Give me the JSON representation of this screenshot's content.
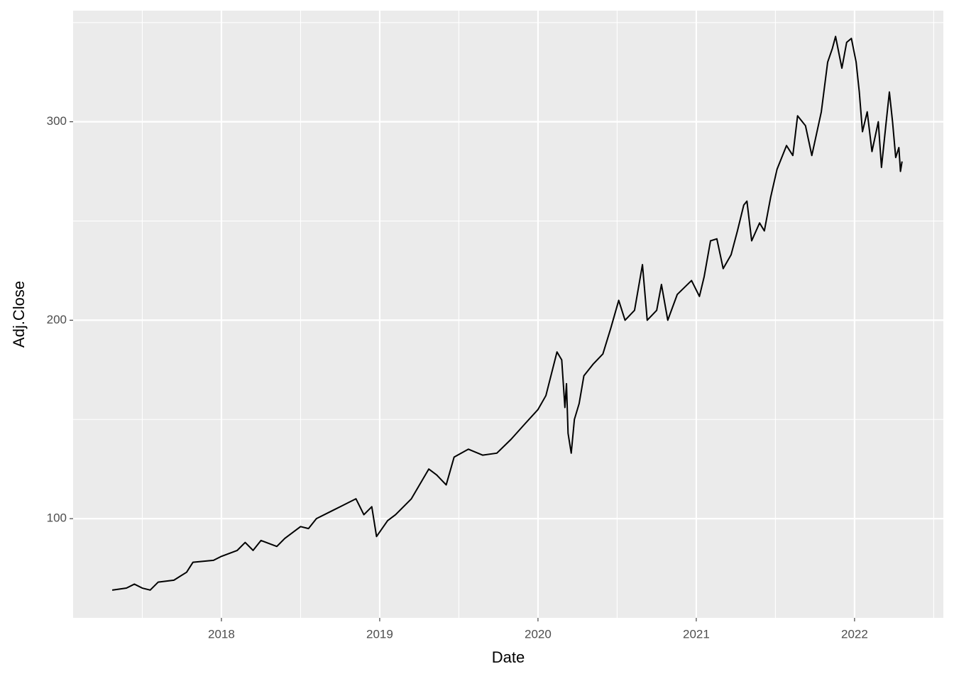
{
  "chart_data": {
    "type": "line",
    "x_label": "Date",
    "y_label": "Adj.Close",
    "xlim": [
      2017.063,
      2022.561
    ],
    "xticks": [
      2018,
      2019,
      2020,
      2021,
      2022
    ],
    "x_minor_grid": [
      2017.5,
      2018.5,
      2019.5,
      2020.5,
      2021.5,
      2022.5
    ],
    "ylim": [
      50,
      356
    ],
    "yticks": [
      100,
      200,
      300
    ],
    "y_minor_grid": [
      150,
      250,
      350
    ],
    "grid": true,
    "series": [
      {
        "color": "#000000",
        "x": [
          2017.31,
          2017.4,
          2017.45,
          2017.5,
          2017.55,
          2017.6,
          2017.7,
          2017.78,
          2017.82,
          2017.95,
          2018.0,
          2018.1,
          2018.15,
          2018.2,
          2018.25,
          2018.35,
          2018.4,
          2018.5,
          2018.55,
          2018.6,
          2018.7,
          2018.75,
          2018.8,
          2018.85,
          2018.9,
          2018.95,
          2018.98,
          2019.05,
          2019.1,
          2019.2,
          2019.31,
          2019.36,
          2019.42,
          2019.47,
          2019.56,
          2019.65,
          2019.74,
          2019.83,
          2019.92,
          2020.0,
          2020.05,
          2020.12,
          2020.15,
          2020.17,
          2020.18,
          2020.19,
          2020.21,
          2020.23,
          2020.26,
          2020.29,
          2020.35,
          2020.41,
          2020.46,
          2020.51,
          2020.55,
          2020.61,
          2020.66,
          2020.69,
          2020.75,
          2020.78,
          2020.82,
          2020.88,
          2020.97,
          2021.02,
          2021.05,
          2021.09,
          2021.13,
          2021.17,
          2021.22,
          2021.26,
          2021.3,
          2021.32,
          2021.35,
          2021.4,
          2021.43,
          2021.47,
          2021.51,
          2021.57,
          2021.61,
          2021.64,
          2021.69,
          2021.73,
          2021.79,
          2021.83,
          2021.86,
          2021.88,
          2021.92,
          2021.95,
          2021.98,
          2022.01,
          2022.03,
          2022.05,
          2022.08,
          2022.11,
          2022.15,
          2022.17,
          2022.2,
          2022.22,
          2022.24,
          2022.26,
          2022.28,
          2022.29,
          2022.3
        ],
        "values": [
          64,
          65,
          67,
          65,
          64,
          68,
          69,
          73,
          78,
          79,
          81,
          84,
          88,
          84,
          89,
          86,
          90,
          96,
          95,
          100,
          104,
          106,
          108,
          110,
          102,
          106,
          91,
          99,
          102,
          110,
          125,
          122,
          117,
          131,
          135,
          132,
          133,
          140,
          148,
          155,
          162,
          184,
          180,
          156,
          168,
          143,
          133,
          150,
          158,
          172,
          178,
          183,
          196,
          210,
          200,
          205,
          228,
          200,
          205,
          218,
          200,
          213,
          220,
          212,
          222,
          240,
          241,
          226,
          233,
          245,
          258,
          260,
          240,
          249,
          245,
          262,
          276,
          288,
          283,
          303,
          298,
          283,
          305,
          330,
          337,
          343,
          327,
          340,
          342,
          330,
          315,
          295,
          305,
          285,
          300,
          277,
          300,
          315,
          300,
          282,
          287,
          275,
          280
        ]
      }
    ]
  }
}
